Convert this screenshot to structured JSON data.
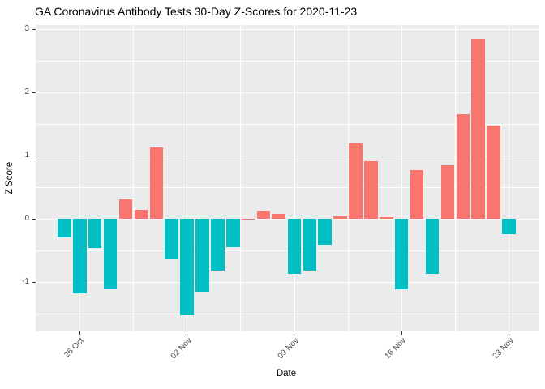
{
  "colors": {
    "positive_bar": "#F8766D",
    "negative_bar": "#00BFC4",
    "panel_background": "#EBEBEB",
    "gridline": "#FFFFFF",
    "tick_text": "#4D4D4D",
    "title_text": "#000000",
    "tick_mark": "#333333"
  },
  "chart_data": {
    "type": "bar",
    "title": "GA Coronavirus Antibody Tests 30-Day Z-Scores for 2020-11-23",
    "xlabel": "Date",
    "ylabel": "Z Score",
    "x": [
      "2020-10-25",
      "2020-10-26",
      "2020-10-27",
      "2020-10-28",
      "2020-10-29",
      "2020-10-30",
      "2020-10-31",
      "2020-11-01",
      "2020-11-02",
      "2020-11-03",
      "2020-11-04",
      "2020-11-05",
      "2020-11-06",
      "2020-11-07",
      "2020-11-08",
      "2020-11-09",
      "2020-11-10",
      "2020-11-11",
      "2020-11-12",
      "2020-11-13",
      "2020-11-14",
      "2020-11-15",
      "2020-11-16",
      "2020-11-17",
      "2020-11-18",
      "2020-11-19",
      "2020-11-20",
      "2020-11-21",
      "2020-11-22",
      "2020-11-23"
    ],
    "values": [
      -0.29,
      -1.18,
      -0.45,
      -1.11,
      0.31,
      0.15,
      1.13,
      -0.64,
      -1.52,
      -1.15,
      -0.81,
      -0.44,
      0.01,
      0.14,
      0.08,
      -0.86,
      -0.82,
      -0.4,
      0.04,
      1.2,
      0.91,
      0.03,
      -1.11,
      0.77,
      -0.86,
      0.85,
      1.66,
      2.85,
      1.48,
      -0.24
    ],
    "xtick_labels": [
      "26 Oct",
      "02 Nov",
      "09 Nov",
      "16 Nov",
      "23 Nov"
    ],
    "xtick_indices": [
      1,
      8,
      15,
      22,
      29
    ],
    "ytick_labels": [
      "3",
      "2",
      "1",
      "0",
      "-1"
    ],
    "ytick_values": [
      3,
      2,
      1,
      0,
      -1
    ],
    "yminor_values": [
      2.5,
      1.5,
      0.5,
      -0.5,
      -1.5
    ],
    "xminor_indices": [
      4.5,
      11.5,
      18.5,
      25.5
    ],
    "ylim": [
      -1.78,
      3.07
    ],
    "grid": "white major and minor gridlines on gray panel",
    "legend": "none",
    "bar_color_rule": "positive values salmon, negative values teal"
  }
}
